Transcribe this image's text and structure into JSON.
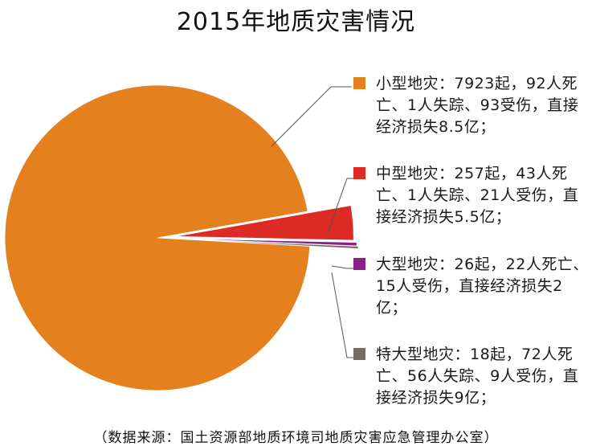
{
  "chart_data": {
    "type": "pie",
    "title": "2015年地质灾害情况",
    "categories": [
      "小型地灾",
      "中型地灾",
      "大型地灾",
      "特大型地灾"
    ],
    "values": [
      7923,
      257,
      26,
      18
    ],
    "colors": [
      "#E5801F",
      "#DD2A24",
      "#8B1F8B",
      "#7A6A5E"
    ],
    "legend": [
      {
        "label": "小型地灾：7923起，92人死亡、1人失踪、93受伤，直接经济损失8.5亿；"
      },
      {
        "label": "中型地灾：257起，43人死亡、1人失踪、21人受伤，直接经济损失5.5亿；"
      },
      {
        "label": "大型地灾：26起，22人死亡、15人受伤，直接经济损失2亿；"
      },
      {
        "label": "特大型地灾：18起，72人死亡、56人失踪、9人受伤，直接经济损失9亿；"
      }
    ],
    "legend_position": "right",
    "source": "（数据来源：国土资源部地质环境司地质灾害应急管理办公室）"
  }
}
